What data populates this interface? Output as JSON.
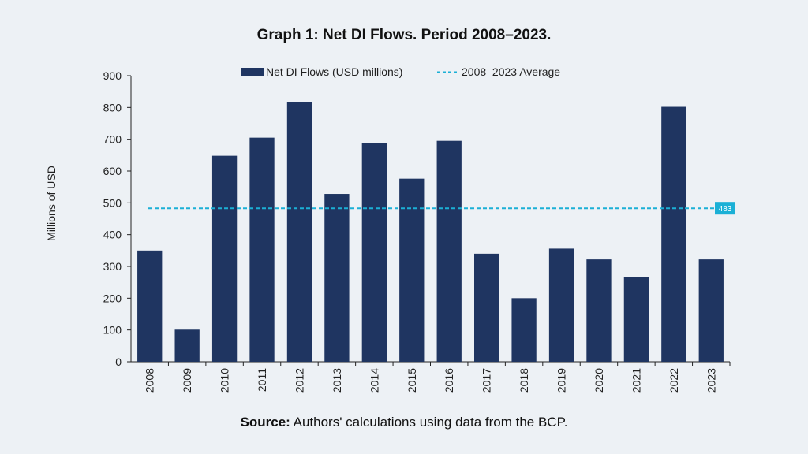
{
  "title": "Graph 1: Net DI Flows. Period 2008–2023.",
  "source": {
    "label": "Source:",
    "text": " Authors' calculations using data from the BCP."
  },
  "colors": {
    "bar": "#1f3561",
    "average": "#1bb0d6",
    "background": "#edf1f5"
  },
  "chart_data": {
    "type": "bar",
    "categories": [
      "2008",
      "2009",
      "2010",
      "2011",
      "2012",
      "2013",
      "2014",
      "2015",
      "2016",
      "2017",
      "2018",
      "2019",
      "2020",
      "2021",
      "2022",
      "2023"
    ],
    "series": [
      {
        "name": "Net DI Flows (USD millions)",
        "values": [
          350,
          101,
          648,
          705,
          818,
          528,
          687,
          576,
          695,
          340,
          200,
          356,
          322,
          267,
          802,
          322
        ]
      }
    ],
    "average": {
      "name": "2008–2023 Average",
      "value": 483,
      "label": "483"
    },
    "ylabel": "Millions of USD",
    "xlabel": "",
    "ylim": [
      0,
      900
    ],
    "yticks": [
      0,
      100,
      200,
      300,
      400,
      500,
      600,
      700,
      800,
      900
    ],
    "grid": false,
    "legend_position": "top-center"
  }
}
